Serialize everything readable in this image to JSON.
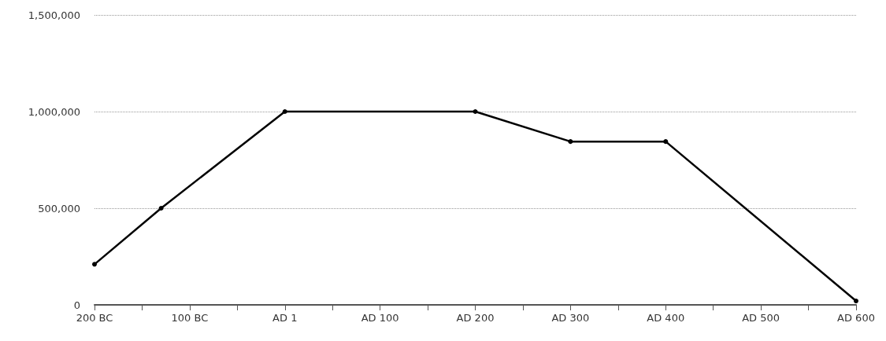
{
  "chart_data": {
    "type": "line",
    "x": [
      -200,
      -130,
      0,
      200,
      300,
      400,
      600
    ],
    "series": [
      {
        "color": "#000000",
        "values": [
          210000,
          500000,
          1000000,
          1000000,
          845000,
          845000,
          20000
        ]
      }
    ],
    "xlim": [
      -200,
      600
    ],
    "xticks": [
      {
        "value": -200,
        "label": "200 BC"
      },
      {
        "value": -150,
        "label": null
      },
      {
        "value": -100,
        "label": "100 BC"
      },
      {
        "value": -50,
        "label": null
      },
      {
        "value": 0,
        "label": "AD 1"
      },
      {
        "value": 50,
        "label": null
      },
      {
        "value": 100,
        "label": "AD 100"
      },
      {
        "value": 150,
        "label": null
      },
      {
        "value": 200,
        "label": "AD 200"
      },
      {
        "value": 250,
        "label": null
      },
      {
        "value": 300,
        "label": "AD 300"
      },
      {
        "value": 350,
        "label": null
      },
      {
        "value": 400,
        "label": "AD 400"
      },
      {
        "value": 450,
        "label": null
      },
      {
        "value": 500,
        "label": "AD 500"
      },
      {
        "value": 550,
        "label": null
      },
      {
        "value": 600,
        "label": "AD 600"
      }
    ],
    "ylim": [
      0,
      1500000
    ],
    "yticks": [
      0,
      {
        "value": 500000,
        "label": "500,000"
      },
      {
        "value": 1000000,
        "label": "1,000,000"
      },
      {
        "value": 1500000,
        "label": "1,500,000"
      }
    ],
    "grid": "y",
    "marker": "circle",
    "line_style": "solid"
  }
}
